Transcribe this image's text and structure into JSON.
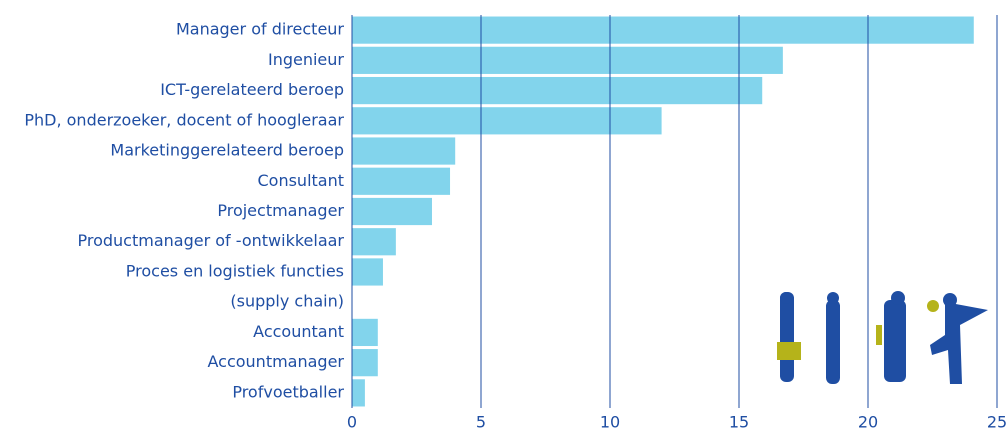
{
  "chart_data": {
    "type": "hbar",
    "categories": [
      "Manager of directeur",
      "Ingenieur",
      "ICT-gerelateerd beroep",
      "PhD, onderzoeker, docent of hoogleraar",
      "Marketinggerelateerd beroep",
      "Consultant",
      "Projectmanager",
      "Productmanager of -ontwikkelaar",
      "Proces en logistiek functies",
      "(supply chain)",
      "Accountant",
      "Accountmanager",
      "Profvoetballer"
    ],
    "values": [
      24.1,
      16.7,
      15.9,
      12.0,
      4.0,
      3.8,
      3.1,
      1.7,
      1.2,
      null,
      1.0,
      1.0,
      0.5
    ],
    "color": "#82d4ec",
    "grid_color": "#1f4ea3",
    "xlim": [
      0,
      25
    ],
    "xticks": [
      0,
      5,
      10,
      15,
      20,
      25
    ],
    "grid": true
  }
}
